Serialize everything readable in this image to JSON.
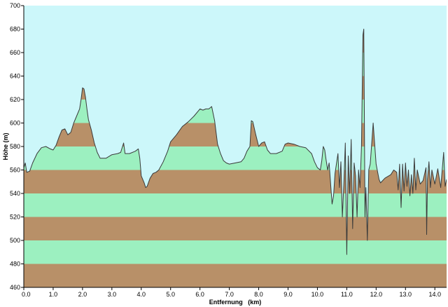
{
  "colors": {
    "sky": "#ccf7fa",
    "band_brown": "#b89068",
    "band_green": "#9cf0c0",
    "profile_line": "#3a3a3a",
    "axis": "#000000"
  },
  "chart_data": {
    "type": "area",
    "title": "",
    "xlabel": "Entfernung   (km)",
    "ylabel": "Höhe (m)",
    "xlim": [
      0,
      14.4
    ],
    "ylim": [
      460,
      700
    ],
    "x_ticks": [
      "0.0",
      "1.0",
      "2.0",
      "3.0",
      "4.0",
      "5.0",
      "6.0",
      "7.0",
      "8.0",
      "9.0",
      "10.0",
      "11.0",
      "12.0",
      "13.0",
      "14.0"
    ],
    "y_ticks": [
      "460",
      "480",
      "500",
      "520",
      "540",
      "560",
      "580",
      "600",
      "620",
      "640",
      "660",
      "680",
      "700"
    ],
    "grid": false,
    "legend": "none",
    "bands": "alternating 20 m elevation bands (brown/green) below the profile",
    "series": [
      {
        "points": [
          [
            0.0,
            562
          ],
          [
            0.05,
            566
          ],
          [
            0.1,
            558
          ],
          [
            0.2,
            559
          ],
          [
            0.3,
            566
          ],
          [
            0.45,
            574
          ],
          [
            0.6,
            579
          ],
          [
            0.75,
            580
          ],
          [
            0.9,
            578
          ],
          [
            1.0,
            577
          ],
          [
            1.1,
            581
          ],
          [
            1.2,
            588
          ],
          [
            1.3,
            594
          ],
          [
            1.4,
            595
          ],
          [
            1.5,
            590
          ],
          [
            1.6,
            592
          ],
          [
            1.7,
            600
          ],
          [
            1.8,
            606
          ],
          [
            1.9,
            612
          ],
          [
            1.95,
            620
          ],
          [
            2.0,
            630
          ],
          [
            2.05,
            629
          ],
          [
            2.1,
            622
          ],
          [
            2.15,
            612
          ],
          [
            2.2,
            603
          ],
          [
            2.3,
            594
          ],
          [
            2.4,
            583
          ],
          [
            2.5,
            575
          ],
          [
            2.6,
            570
          ],
          [
            2.8,
            570
          ],
          [
            3.0,
            573
          ],
          [
            3.2,
            574
          ],
          [
            3.3,
            575
          ],
          [
            3.4,
            583
          ],
          [
            3.45,
            574
          ],
          [
            3.6,
            574
          ],
          [
            3.8,
            576
          ],
          [
            3.9,
            578
          ],
          [
            3.95,
            570
          ],
          [
            4.0,
            555
          ],
          [
            4.1,
            549
          ],
          [
            4.15,
            545
          ],
          [
            4.2,
            546
          ],
          [
            4.3,
            553
          ],
          [
            4.4,
            557
          ],
          [
            4.5,
            558
          ],
          [
            4.6,
            560
          ],
          [
            4.75,
            567
          ],
          [
            4.9,
            576
          ],
          [
            5.0,
            584
          ],
          [
            5.2,
            590
          ],
          [
            5.4,
            597
          ],
          [
            5.6,
            601
          ],
          [
            5.8,
            606
          ],
          [
            6.0,
            612
          ],
          [
            6.1,
            611
          ],
          [
            6.2,
            612
          ],
          [
            6.3,
            612
          ],
          [
            6.4,
            614
          ],
          [
            6.5,
            602
          ],
          [
            6.6,
            582
          ],
          [
            6.7,
            574
          ],
          [
            6.8,
            568
          ],
          [
            6.9,
            566
          ],
          [
            7.0,
            565
          ],
          [
            7.2,
            566
          ],
          [
            7.4,
            567
          ],
          [
            7.5,
            570
          ],
          [
            7.6,
            576
          ],
          [
            7.7,
            580
          ],
          [
            7.75,
            602
          ],
          [
            7.8,
            601
          ],
          [
            7.9,
            590
          ],
          [
            8.0,
            580
          ],
          [
            8.1,
            583
          ],
          [
            8.2,
            584
          ],
          [
            8.3,
            577
          ],
          [
            8.4,
            574
          ],
          [
            8.6,
            574
          ],
          [
            8.8,
            576
          ],
          [
            8.9,
            582
          ],
          [
            9.0,
            583
          ],
          [
            9.2,
            582
          ],
          [
            9.4,
            580
          ],
          [
            9.6,
            579
          ],
          [
            9.8,
            574
          ],
          [
            9.9,
            567
          ],
          [
            10.0,
            562
          ],
          [
            10.1,
            560
          ],
          [
            10.15,
            568
          ],
          [
            10.2,
            580
          ],
          [
            10.25,
            577
          ],
          [
            10.3,
            568
          ],
          [
            10.35,
            560
          ],
          [
            10.4,
            566
          ],
          [
            10.5,
            531
          ],
          [
            10.55,
            538
          ],
          [
            10.6,
            557
          ],
          [
            10.7,
            574
          ],
          [
            10.75,
            545
          ],
          [
            10.8,
            567
          ],
          [
            10.85,
            520
          ],
          [
            10.9,
            548
          ],
          [
            10.95,
            583
          ],
          [
            11.0,
            488
          ],
          [
            11.05,
            572
          ],
          [
            11.1,
            540
          ],
          [
            11.15,
            586
          ],
          [
            11.2,
            510
          ],
          [
            11.25,
            566
          ],
          [
            11.3,
            555
          ],
          [
            11.35,
            520
          ],
          [
            11.4,
            560
          ],
          [
            11.45,
            545
          ],
          [
            11.5,
            580
          ],
          [
            11.55,
            675
          ],
          [
            11.58,
            680
          ],
          [
            11.6,
            600
          ],
          [
            11.62,
            520
          ],
          [
            11.65,
            545
          ],
          [
            11.7,
            500
          ],
          [
            11.75,
            560
          ],
          [
            11.8,
            565
          ],
          [
            11.9,
            600
          ],
          [
            12.0,
            565
          ],
          [
            12.1,
            552
          ],
          [
            12.15,
            549
          ],
          [
            12.3,
            553
          ],
          [
            12.5,
            556
          ],
          [
            12.6,
            560
          ],
          [
            12.7,
            558
          ],
          [
            12.75,
            543
          ],
          [
            12.8,
            565
          ],
          [
            12.85,
            528
          ],
          [
            12.9,
            565
          ],
          [
            12.95,
            542
          ],
          [
            13.0,
            566
          ],
          [
            13.05,
            546
          ],
          [
            13.1,
            560
          ],
          [
            13.15,
            538
          ],
          [
            13.2,
            556
          ],
          [
            13.25,
            540
          ],
          [
            13.3,
            570
          ],
          [
            13.35,
            543
          ],
          [
            13.4,
            560
          ],
          [
            13.5,
            548
          ],
          [
            13.6,
            551
          ],
          [
            13.7,
            562
          ],
          [
            13.72,
            505
          ],
          [
            13.75,
            552
          ],
          [
            13.8,
            567
          ],
          [
            13.85,
            545
          ],
          [
            13.9,
            560
          ],
          [
            14.0,
            548
          ],
          [
            14.1,
            561
          ],
          [
            14.2,
            545
          ],
          [
            14.3,
            575
          ],
          [
            14.35,
            546
          ],
          [
            14.4,
            552
          ]
        ]
      }
    ]
  }
}
